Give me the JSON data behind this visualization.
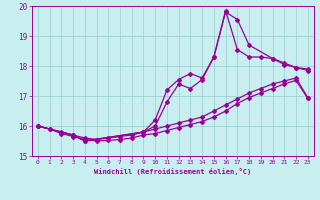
{
  "xlabel": "Windchill (Refroidissement éolien,°C)",
  "bg_color": "#c8eef0",
  "line_color": "#990099",
  "grid_color": "#99cccc",
  "xlim": [
    -0.5,
    23.5
  ],
  "ylim": [
    15,
    20
  ],
  "yticks": [
    15,
    16,
    17,
    18,
    19,
    20
  ],
  "xticks": [
    0,
    1,
    2,
    3,
    4,
    5,
    6,
    7,
    8,
    9,
    10,
    11,
    12,
    13,
    14,
    15,
    16,
    17,
    18,
    19,
    20,
    21,
    22,
    23
  ],
  "line1_x": [
    0,
    1,
    2,
    3,
    4,
    5,
    6,
    7,
    8,
    9,
    10,
    11,
    12,
    13,
    14,
    15,
    16,
    17,
    18,
    19,
    20,
    21,
    22,
    23
  ],
  "line1_y": [
    16.0,
    15.9,
    15.8,
    15.7,
    15.6,
    15.55,
    15.6,
    15.65,
    15.7,
    15.8,
    15.9,
    16.0,
    16.1,
    16.2,
    16.3,
    16.5,
    16.7,
    16.9,
    17.1,
    17.25,
    17.4,
    17.5,
    17.6,
    16.95
  ],
  "line2_x": [
    0,
    1,
    2,
    3,
    4,
    5,
    6,
    7,
    8,
    9,
    10,
    11,
    12,
    13,
    14,
    15,
    16,
    17,
    18,
    19,
    20,
    21,
    22,
    23
  ],
  "line2_y": [
    16.0,
    15.9,
    15.75,
    15.65,
    15.55,
    15.5,
    15.52,
    15.55,
    15.6,
    15.7,
    15.75,
    15.85,
    15.95,
    16.05,
    16.15,
    16.3,
    16.5,
    16.75,
    16.95,
    17.1,
    17.25,
    17.4,
    17.52,
    16.92
  ],
  "line3_x": [
    0,
    3,
    4,
    9,
    10,
    11,
    12,
    13,
    14,
    15,
    16,
    17,
    18,
    19,
    20,
    21,
    22,
    23
  ],
  "line3_y": [
    16.0,
    15.7,
    15.5,
    15.8,
    16.2,
    17.2,
    17.55,
    17.75,
    17.6,
    18.3,
    19.85,
    18.55,
    18.3,
    18.3,
    18.25,
    18.1,
    17.95,
    17.9
  ],
  "line4_x": [
    0,
    3,
    4,
    9,
    10,
    11,
    12,
    13,
    14,
    15,
    16,
    17,
    18,
    20,
    21,
    22,
    23
  ],
  "line4_y": [
    16.0,
    15.7,
    15.5,
    15.8,
    16.0,
    16.8,
    17.4,
    17.25,
    17.55,
    18.3,
    19.8,
    19.55,
    18.7,
    18.25,
    18.05,
    17.95,
    17.85
  ]
}
